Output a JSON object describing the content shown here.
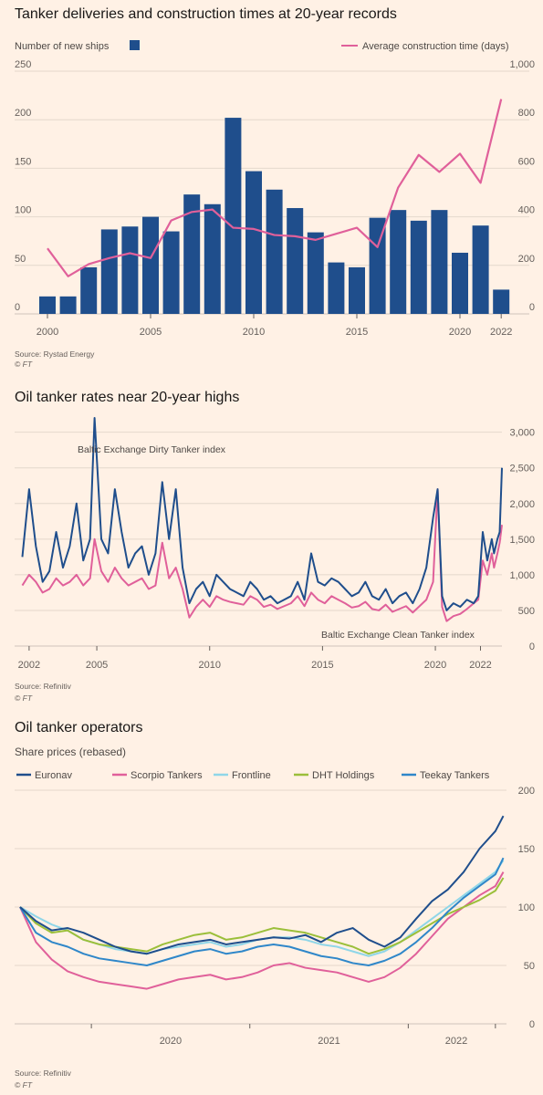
{
  "chart_data": [
    {
      "type": "bar",
      "title": "Tanker deliveries and construction times at 20-year records",
      "legend_bars": "Number of new ships",
      "legend_line": "Average construction time (days)",
      "x_ticks": [
        "2000",
        "2005",
        "2010",
        "2015",
        "2020",
        "2022"
      ],
      "y_left_ticks": [
        "250",
        "200",
        "150",
        "100",
        "50",
        "0"
      ],
      "y_right_ticks": [
        "1,000",
        "800",
        "600",
        "400",
        "200",
        "0"
      ],
      "ylim_left": [
        0,
        250
      ],
      "ylim_right": [
        0,
        1000
      ],
      "source": "Source: Rystad Energy",
      "credit": "© FT",
      "colors": {
        "bars": "#1f4e8c",
        "line": "#e0609a"
      },
      "categories": [
        2000,
        2001,
        2002,
        2003,
        2004,
        2005,
        2006,
        2007,
        2008,
        2009,
        2010,
        2011,
        2012,
        2013,
        2014,
        2015,
        2016,
        2017,
        2018,
        2019,
        2020,
        2021,
        2022
      ],
      "series": [
        {
          "name": "Number of new ships",
          "axis": "left",
          "values": [
            18,
            18,
            48,
            87,
            90,
            100,
            85,
            123,
            113,
            202,
            147,
            128,
            109,
            84,
            53,
            48,
            99,
            107,
            96,
            107,
            63,
            91,
            25
          ]
        },
        {
          "name": "Average construction time (days)",
          "axis": "right",
          "values": [
            270,
            155,
            205,
            230,
            250,
            230,
            385,
            420,
            430,
            355,
            350,
            325,
            320,
            305,
            330,
            355,
            275,
            520,
            655,
            585,
            660,
            540,
            885
          ]
        }
      ]
    },
    {
      "type": "line",
      "title": "Oil tanker rates near 20-year highs",
      "x_ticks": [
        "2002",
        "2005",
        "2010",
        "2015",
        "2020",
        "2022"
      ],
      "y_ticks": [
        "3,000",
        "2,500",
        "2,000",
        "1,500",
        "1,000",
        "500",
        "0"
      ],
      "ylim": [
        0,
        3200
      ],
      "annotation_dirty": "Baltic Exchange Dirty Tanker index",
      "annotation_clean": "Baltic Exchange Clean Tanker index",
      "source": "Source: Refinitiv",
      "credit": "© FT",
      "colors": {
        "dirty": "#1f4e8c",
        "clean": "#e0609a"
      },
      "x": [
        2001.7,
        2002.0,
        2002.3,
        2002.6,
        2002.9,
        2003.2,
        2003.5,
        2003.8,
        2004.1,
        2004.4,
        2004.7,
        2004.9,
        2005.2,
        2005.5,
        2005.8,
        2006.1,
        2006.4,
        2006.7,
        2007.0,
        2007.3,
        2007.6,
        2007.9,
        2008.2,
        2008.5,
        2008.8,
        2009.1,
        2009.4,
        2009.7,
        2010.0,
        2010.3,
        2010.6,
        2010.9,
        2011.2,
        2011.5,
        2011.8,
        2012.1,
        2012.4,
        2012.7,
        2013.0,
        2013.3,
        2013.6,
        2013.9,
        2014.2,
        2014.5,
        2014.8,
        2015.1,
        2015.4,
        2015.7,
        2016.0,
        2016.3,
        2016.6,
        2016.9,
        2017.2,
        2017.5,
        2017.8,
        2018.1,
        2018.4,
        2018.7,
        2019.0,
        2019.3,
        2019.6,
        2019.9,
        2020.1,
        2020.3,
        2020.5,
        2020.8,
        2021.1,
        2021.4,
        2021.7,
        2021.9,
        2022.1,
        2022.3,
        2022.5,
        2022.6,
        2022.75,
        2022.85,
        2022.95
      ],
      "series": [
        {
          "name": "Baltic Exchange Dirty Tanker index",
          "values": [
            1250,
            2200,
            1400,
            900,
            1050,
            1600,
            1100,
            1400,
            2000,
            1200,
            1500,
            3200,
            1500,
            1300,
            2200,
            1600,
            1100,
            1300,
            1400,
            1000,
            1300,
            2300,
            1500,
            2200,
            1100,
            600,
            800,
            900,
            700,
            1000,
            900,
            800,
            750,
            700,
            900,
            800,
            650,
            700,
            600,
            650,
            700,
            900,
            650,
            1300,
            900,
            850,
            950,
            900,
            800,
            700,
            750,
            900,
            700,
            650,
            800,
            600,
            700,
            750,
            600,
            800,
            1100,
            1800,
            2200,
            700,
            500,
            600,
            550,
            650,
            600,
            700,
            1600,
            1200,
            1500,
            1300,
            1500,
            1600,
            2500
          ]
        },
        {
          "name": "Baltic Exchange Clean Tanker index",
          "values": [
            850,
            1000,
            900,
            750,
            800,
            950,
            850,
            900,
            1000,
            850,
            950,
            1500,
            1050,
            900,
            1100,
            950,
            850,
            900,
            950,
            800,
            850,
            1450,
            950,
            1100,
            800,
            400,
            550,
            650,
            550,
            700,
            650,
            620,
            600,
            580,
            700,
            650,
            550,
            580,
            520,
            560,
            600,
            700,
            560,
            750,
            650,
            600,
            700,
            650,
            600,
            540,
            560,
            620,
            520,
            500,
            580,
            480,
            520,
            560,
            470,
            560,
            650,
            900,
            2200,
            550,
            350,
            420,
            450,
            520,
            600,
            650,
            1200,
            1000,
            1300,
            1100,
            1300,
            1450,
            1700
          ]
        }
      ]
    },
    {
      "type": "line",
      "title": "Oil tanker operators",
      "subtitle": "Share prices (rebased)",
      "x_ticks": [
        "2020",
        "2021",
        "2022"
      ],
      "y_ticks": [
        "200",
        "150",
        "100",
        "50",
        "0"
      ],
      "ylim": [
        0,
        200
      ],
      "source": "Source: Refinitiv",
      "credit": "© FT",
      "x": [
        2019.55,
        2019.65,
        2019.75,
        2019.85,
        2019.95,
        2020.05,
        2020.15,
        2020.25,
        2020.35,
        2020.45,
        2020.55,
        2020.65,
        2020.75,
        2020.85,
        2020.95,
        2021.05,
        2021.15,
        2021.25,
        2021.35,
        2021.45,
        2021.55,
        2021.65,
        2021.75,
        2021.85,
        2021.95,
        2022.05,
        2022.15,
        2022.25,
        2022.35,
        2022.45,
        2022.55,
        2022.6
      ],
      "series": [
        {
          "name": "Euronav",
          "color": "#1f4e8c",
          "values": [
            100,
            88,
            80,
            82,
            78,
            72,
            66,
            62,
            60,
            64,
            68,
            70,
            72,
            68,
            70,
            72,
            74,
            73,
            76,
            70,
            78,
            82,
            72,
            66,
            74,
            90,
            105,
            115,
            130,
            150,
            165,
            178
          ]
        },
        {
          "name": "Scorpio Tankers",
          "color": "#e0609a",
          "values": [
            100,
            70,
            55,
            45,
            40,
            36,
            34,
            32,
            30,
            34,
            38,
            40,
            42,
            38,
            40,
            44,
            50,
            52,
            48,
            46,
            44,
            40,
            36,
            40,
            48,
            60,
            75,
            90,
            100,
            110,
            118,
            130
          ]
        },
        {
          "name": "Frontline",
          "color": "#8fd6e8",
          "values": [
            100,
            92,
            85,
            80,
            72,
            68,
            64,
            62,
            60,
            64,
            66,
            68,
            70,
            66,
            68,
            72,
            74,
            74,
            72,
            68,
            66,
            62,
            58,
            62,
            70,
            80,
            90,
            100,
            110,
            120,
            130,
            140
          ]
        },
        {
          "name": "DHT Holdings",
          "color": "#9bbf3a",
          "values": [
            100,
            86,
            78,
            80,
            72,
            68,
            66,
            64,
            62,
            68,
            72,
            76,
            78,
            72,
            74,
            78,
            82,
            80,
            78,
            74,
            70,
            66,
            60,
            64,
            70,
            78,
            86,
            94,
            100,
            106,
            114,
            125
          ]
        },
        {
          "name": "Teekay Tankers",
          "color": "#2f87c9",
          "values": [
            100,
            78,
            70,
            66,
            60,
            56,
            54,
            52,
            50,
            54,
            58,
            62,
            64,
            60,
            62,
            66,
            68,
            66,
            62,
            58,
            56,
            52,
            50,
            54,
            60,
            70,
            82,
            96,
            108,
            118,
            128,
            142
          ]
        }
      ]
    }
  ]
}
